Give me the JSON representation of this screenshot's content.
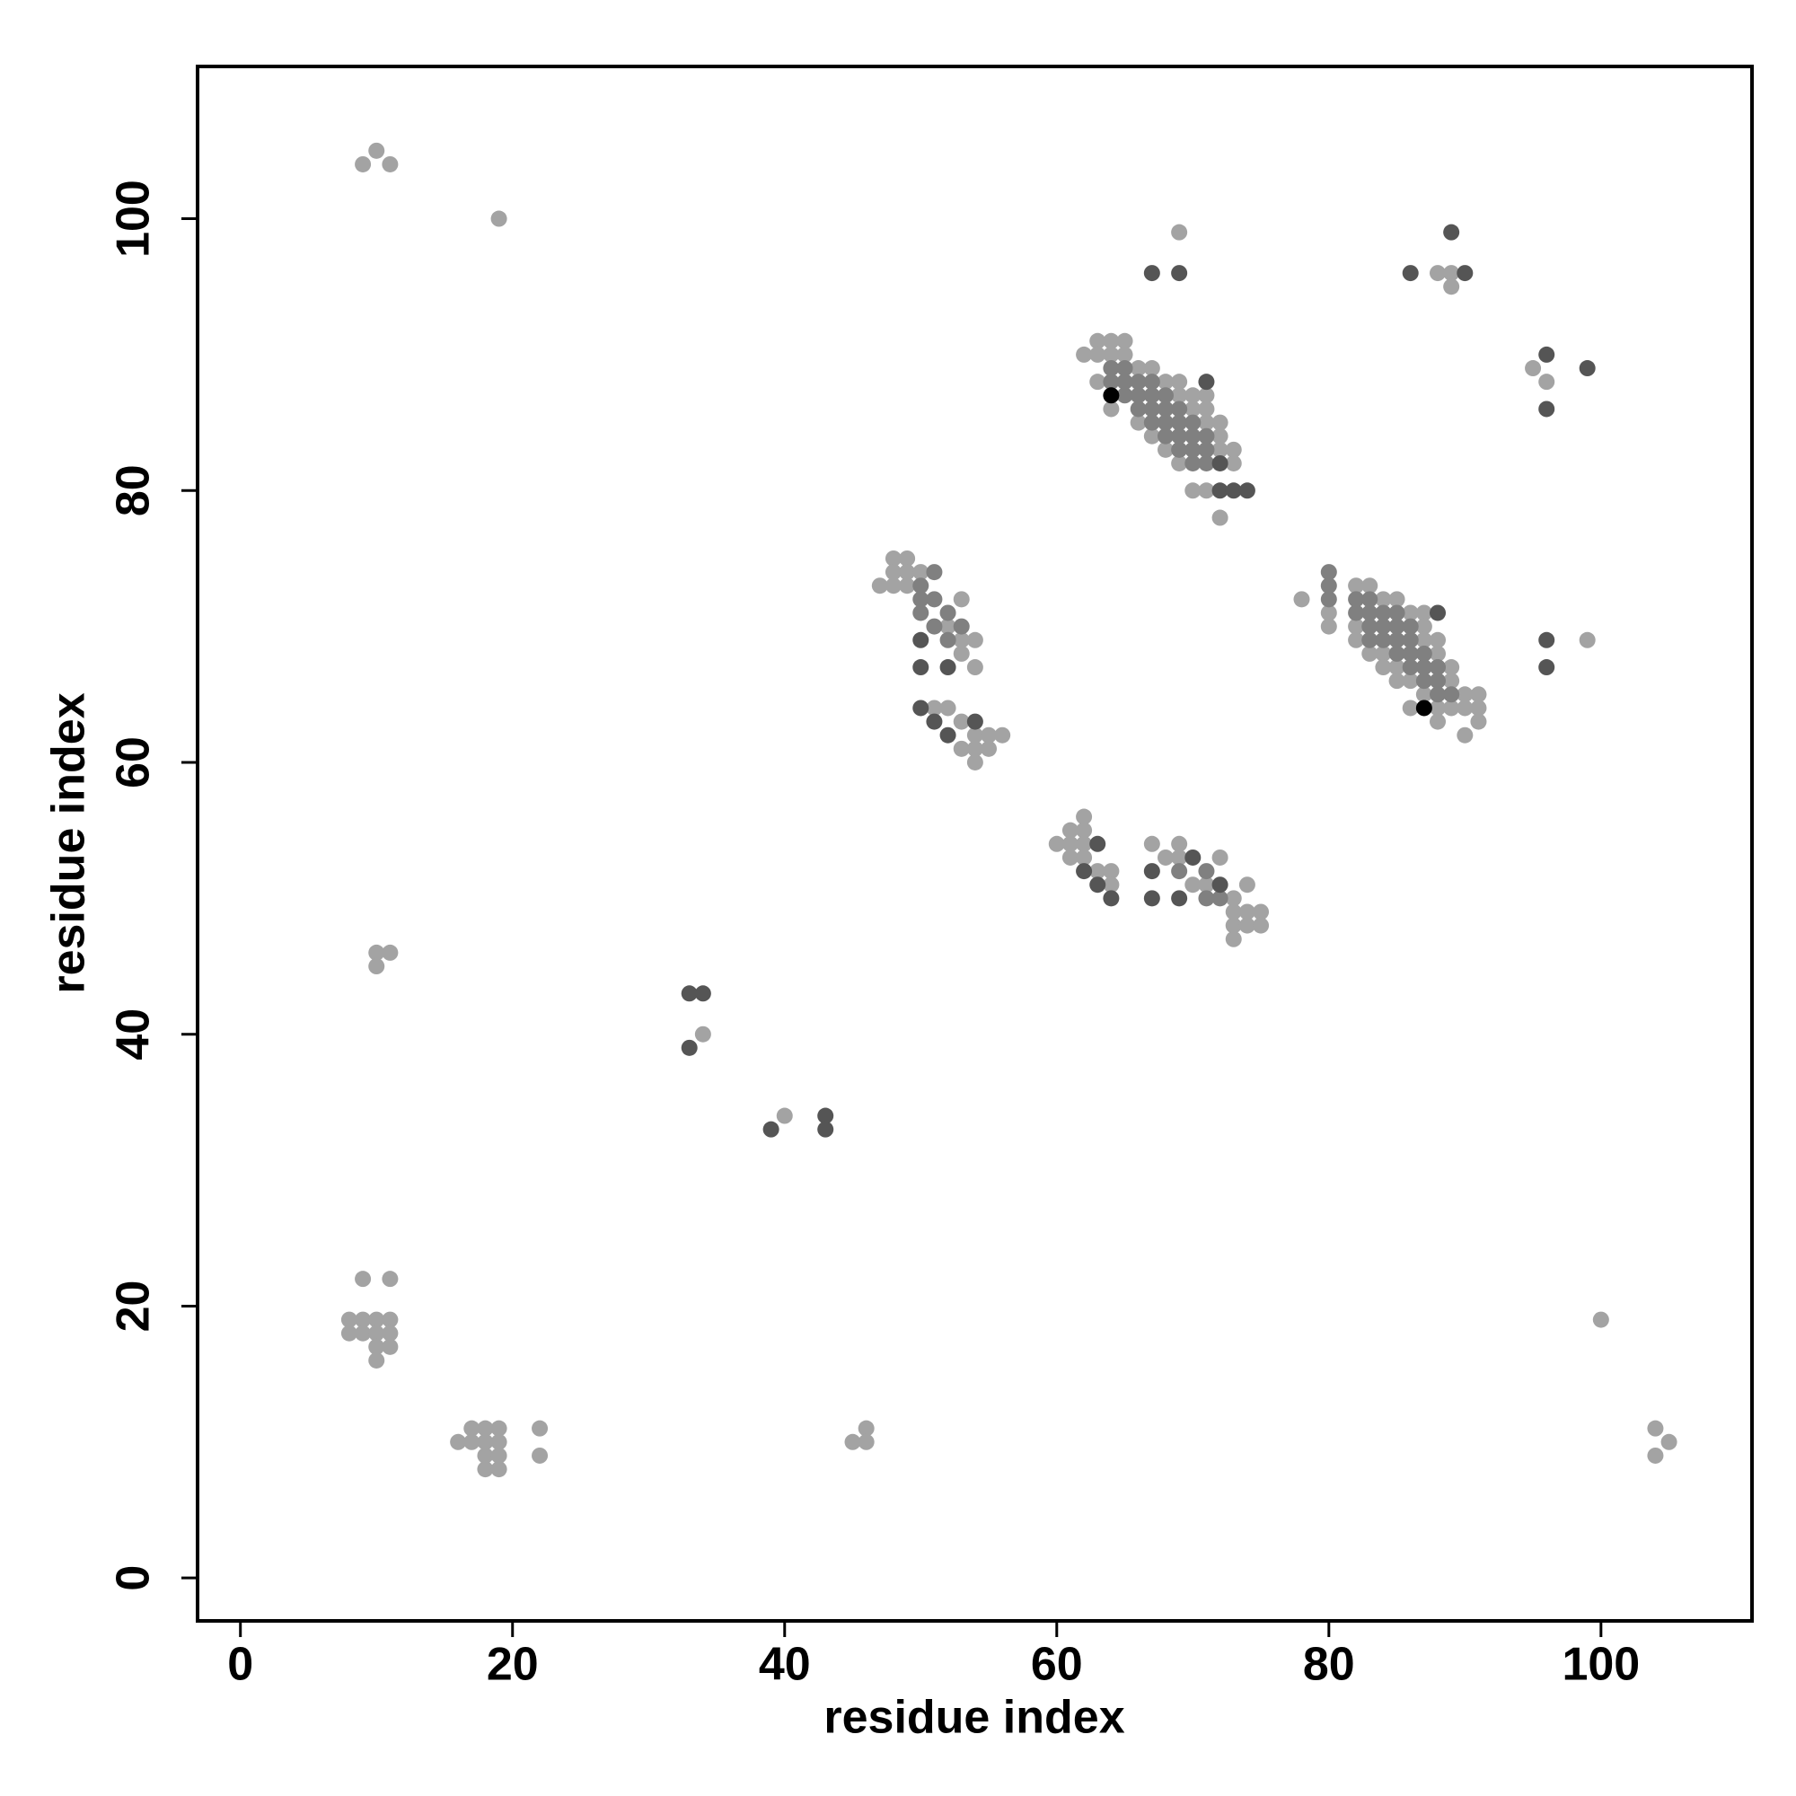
{
  "chart_data": {
    "type": "scatter",
    "x_label": "residue index",
    "y_label": "residue index",
    "xlim": [
      -3.15,
      111.1
    ],
    "ylim": [
      -3.16,
      111.2
    ],
    "xticks": [
      0,
      20,
      40,
      60,
      80,
      100
    ],
    "yticks": [
      0,
      20,
      40,
      60,
      80,
      100
    ],
    "grid": false,
    "series": [
      {
        "color": "#a3a3a3",
        "x": [
          9,
          10,
          11,
          19,
          10,
          11,
          10,
          9,
          11,
          8,
          9,
          10,
          11,
          8,
          9,
          10,
          11,
          10,
          11,
          10,
          16,
          17,
          18,
          19,
          17,
          18,
          19,
          18,
          19,
          18,
          19,
          22,
          22,
          45,
          46,
          46,
          100,
          104,
          105,
          104,
          34,
          40,
          69,
          88,
          89,
          89,
          95,
          96,
          99,
          78,
          63,
          64,
          65,
          62,
          63,
          64,
          65,
          66,
          67,
          63,
          68,
          69,
          69,
          70,
          71,
          64,
          70,
          71,
          66,
          71,
          72,
          67,
          72,
          68,
          72,
          73,
          69,
          73,
          70,
          71,
          72,
          82,
          83,
          84,
          85,
          86,
          87,
          80,
          80,
          82,
          87,
          82,
          87,
          88,
          83,
          84,
          88,
          84,
          85,
          89,
          85,
          86,
          89,
          87,
          90,
          91,
          86,
          88,
          89,
          90,
          91,
          88,
          91,
          90,
          48,
          49,
          48,
          49,
          50,
          47,
          48,
          49,
          53,
          52,
          54,
          53,
          53,
          54,
          51,
          52,
          53,
          54,
          55,
          56,
          53,
          54,
          55,
          54,
          62,
          61,
          62,
          60,
          61,
          62,
          67,
          69,
          61,
          62,
          68,
          69,
          72,
          63,
          64,
          64,
          70,
          71,
          74,
          73,
          73,
          74,
          75,
          73,
          74,
          75,
          73
        ],
        "values": [
          104,
          105,
          104,
          100,
          46,
          46,
          45,
          22,
          22,
          19,
          19,
          19,
          19,
          18,
          18,
          18,
          18,
          17,
          17,
          16,
          10,
          11,
          11,
          11,
          10,
          10,
          10,
          9,
          9,
          8,
          8,
          11,
          9,
          10,
          11,
          10,
          19,
          11,
          10,
          9,
          40,
          34,
          99,
          96,
          96,
          95,
          89,
          88,
          69,
          72,
          91,
          91,
          91,
          90,
          90,
          90,
          90,
          89,
          89,
          88,
          88,
          88,
          87,
          87,
          87,
          86,
          86,
          86,
          85,
          85,
          85,
          84,
          84,
          83,
          83,
          83,
          82,
          82,
          80,
          80,
          78,
          73,
          73,
          72,
          72,
          71,
          71,
          71,
          70,
          70,
          70,
          69,
          69,
          69,
          68,
          68,
          68,
          67,
          67,
          67,
          66,
          66,
          66,
          65,
          65,
          65,
          64,
          64,
          64,
          64,
          64,
          63,
          63,
          62,
          75,
          75,
          74,
          74,
          74,
          73,
          73,
          73,
          72,
          70,
          69,
          69,
          68,
          67,
          64,
          64,
          63,
          62,
          62,
          62,
          61,
          61,
          61,
          60,
          56,
          55,
          55,
          54,
          54,
          54,
          54,
          54,
          53,
          53,
          53,
          53,
          53,
          52,
          52,
          51,
          51,
          51,
          51,
          50,
          49,
          49,
          49,
          48,
          48,
          48,
          47
        ]
      },
      {
        "color": "#808080",
        "x": [
          64,
          65,
          64,
          65,
          66,
          67,
          65,
          66,
          67,
          68,
          66,
          67,
          68,
          69,
          67,
          68,
          69,
          70,
          68,
          69,
          70,
          71,
          69,
          70,
          71,
          70,
          71,
          80,
          80,
          80,
          82,
          83,
          82,
          83,
          84,
          85,
          83,
          84,
          85,
          86,
          83,
          84,
          85,
          86,
          85,
          86,
          87,
          86,
          87,
          88,
          87,
          88,
          88,
          89,
          51,
          50,
          50,
          51,
          50,
          52,
          51,
          53,
          52,
          69,
          71,
          71,
          72
        ],
        "values": [
          89,
          89,
          88,
          88,
          88,
          88,
          87,
          87,
          87,
          87,
          86,
          86,
          86,
          86,
          85,
          85,
          85,
          85,
          84,
          84,
          84,
          84,
          83,
          83,
          83,
          82,
          82,
          74,
          73,
          72,
          72,
          72,
          71,
          71,
          71,
          71,
          70,
          70,
          70,
          70,
          69,
          69,
          69,
          69,
          68,
          68,
          68,
          67,
          67,
          67,
          66,
          66,
          65,
          65,
          74,
          73,
          72,
          72,
          71,
          71,
          70,
          70,
          69,
          52,
          52,
          50,
          50
        ]
      },
      {
        "color": "#555555",
        "x": [
          33,
          34,
          33,
          39,
          43,
          43,
          67,
          69,
          86,
          89,
          90,
          96,
          99,
          96,
          96,
          96,
          71,
          72,
          72,
          73,
          74,
          88,
          50,
          50,
          52,
          50,
          51,
          54,
          52,
          63,
          70,
          62,
          67,
          63,
          72,
          64,
          67,
          69
        ],
        "values": [
          43,
          43,
          39,
          33,
          34,
          33,
          96,
          96,
          96,
          99,
          96,
          90,
          89,
          86,
          69,
          67,
          88,
          82,
          80,
          80,
          80,
          71,
          69,
          67,
          67,
          64,
          63,
          63,
          62,
          54,
          53,
          52,
          52,
          51,
          51,
          50,
          50,
          50
        ]
      },
      {
        "color": "#000000",
        "x": [
          64,
          87
        ],
        "values": [
          87,
          64
        ]
      }
    ]
  }
}
